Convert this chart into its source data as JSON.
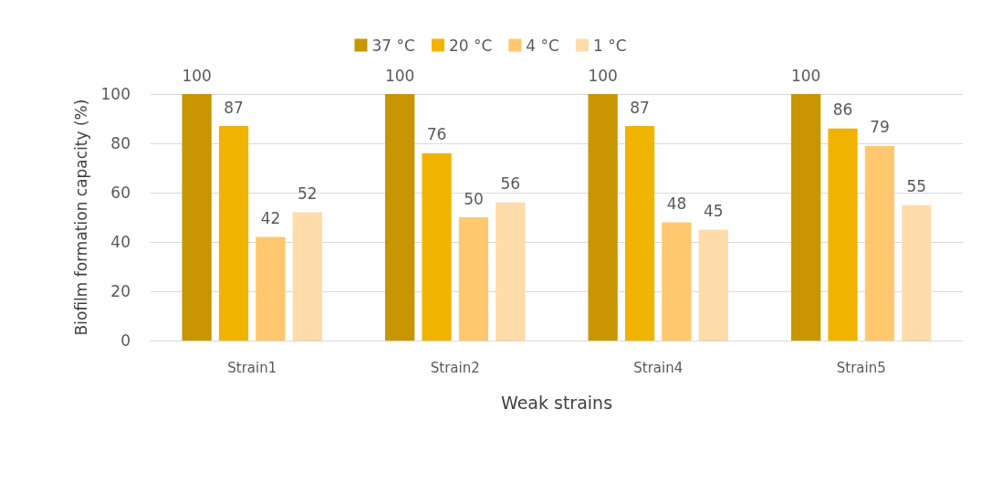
{
  "chart_data": {
    "type": "bar",
    "xlabel": "Weak strains",
    "ylabel": "Biofilm formation capacity (%)",
    "categories": [
      "Strain1",
      "Strain2",
      "Strain4",
      "Strain5"
    ],
    "series": [
      {
        "name": "37 °C",
        "color": "#c89600",
        "values": [
          100,
          100,
          100,
          100
        ]
      },
      {
        "name": "20 °C",
        "color": "#f0b400",
        "values": [
          87,
          76,
          87,
          86
        ]
      },
      {
        "name": "4 °C",
        "color": "#ffc86e",
        "values": [
          42,
          50,
          48,
          79
        ]
      },
      {
        "name": "1 °C",
        "color": "#ffdcaa",
        "values": [
          52,
          56,
          45,
          55
        ]
      }
    ],
    "ylim": [
      0,
      100
    ],
    "yticks": [
      0,
      20,
      40,
      60,
      80,
      100
    ],
    "grid": "y",
    "legend": "top",
    "data_labels": true
  }
}
